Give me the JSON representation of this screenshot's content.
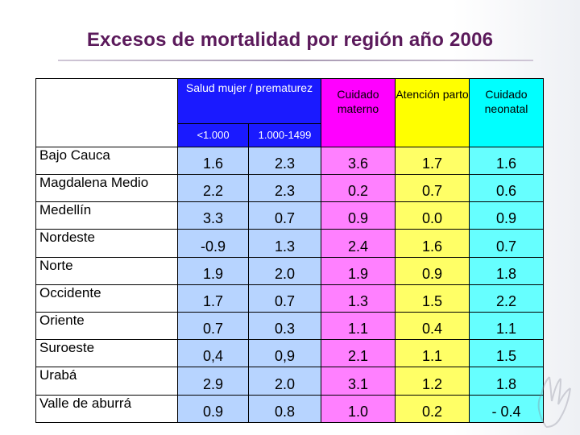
{
  "title": "Excesos de mortalidad por región año 2006",
  "header": {
    "salud": "Salud mujer / prematurez",
    "cuidado_materno": "Cuidado materno",
    "atencion_parto": "Atención parto",
    "cuidado_neonatal": "Cuidado neonatal",
    "sub_1": "<1.000",
    "sub_2": "1.000-1499"
  },
  "rows": [
    {
      "region": "Bajo Cauca",
      "v": [
        "1.6",
        "2.3",
        "3.6",
        "1.7",
        "1.6"
      ]
    },
    {
      "region": "Magdalena Medio",
      "v": [
        "2.2",
        "2.3",
        "0.2",
        "0.7",
        "0.6"
      ]
    },
    {
      "region": "Medellín",
      "v": [
        "3.3",
        "0.7",
        "0.9",
        "0.0",
        "0.9"
      ]
    },
    {
      "region": "Nordeste",
      "v": [
        "-0.9",
        "1.3",
        "2.4",
        "1.6",
        "0.7"
      ]
    },
    {
      "region": "Norte",
      "v": [
        "1.9",
        "2.0",
        "1.9",
        "0.9",
        "1.8"
      ]
    },
    {
      "region": "Occidente",
      "v": [
        "1.7",
        "0.7",
        "1.3",
        "1.5",
        "2.2"
      ]
    },
    {
      "region": "Oriente",
      "v": [
        "0.7",
        "0.3",
        "1.1",
        "0.4",
        "1.1"
      ]
    },
    {
      "region": "Suroeste",
      "v": [
        "0,4",
        "0,9",
        "2.1",
        "1.1",
        "1.5"
      ]
    },
    {
      "region": "Urabá",
      "v": [
        "2.9",
        "2.0",
        "3.1",
        "1.2",
        "1.8"
      ]
    },
    {
      "region": "Valle de aburrá",
      "v": [
        "0.9",
        "0.8",
        "1.0",
        "0.2",
        "- 0.4"
      ]
    }
  ],
  "colors": {
    "title": "#5b1a5b",
    "blue_header": "#1a1aff",
    "blue_values": "#b7d4ff",
    "magenta": "#ff80ff",
    "yellow": "#ffff66",
    "cyan": "#66ffff"
  },
  "icons": {
    "decoration": "hand-sketch-icon"
  }
}
